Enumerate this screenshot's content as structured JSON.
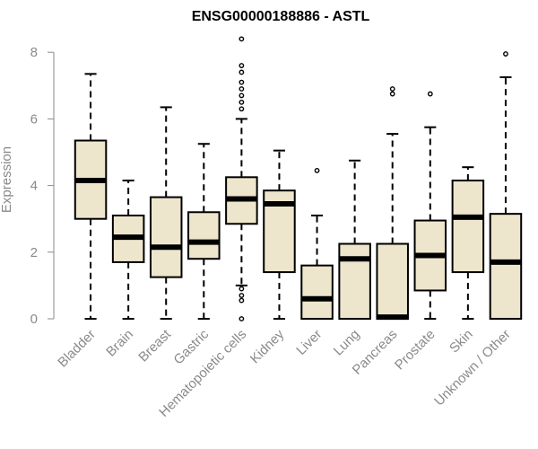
{
  "chart_data": {
    "type": "boxplot",
    "title": "ENSG00000188886 - ASTL",
    "xlabel": "",
    "ylabel": "Expression",
    "ylim": [
      0,
      8.4
    ],
    "yticks": [
      "0",
      "2",
      "4",
      "6",
      "8"
    ],
    "grid": false,
    "colors": {
      "box_fill": "#ede6cd",
      "stroke": "#000000",
      "axis": "#8a8a8a",
      "text": "#8a8a8a",
      "title": "#000000"
    },
    "categories": [
      "Bladder",
      "Brain",
      "Breast",
      "Gastric",
      "Hematopoietic cells",
      "Kidney",
      "Liver",
      "Lung",
      "Pancreas",
      "Prostate",
      "Skin",
      "Unknown / Other"
    ],
    "boxes": [
      {
        "min": 0,
        "q1": 3.0,
        "median": 4.15,
        "q3": 5.35,
        "max": 7.35,
        "outliers": []
      },
      {
        "min": 0,
        "q1": 1.7,
        "median": 2.45,
        "q3": 3.1,
        "max": 4.15,
        "outliers": []
      },
      {
        "min": 0,
        "q1": 1.25,
        "median": 2.15,
        "q3": 3.65,
        "max": 6.35,
        "outliers": []
      },
      {
        "min": 0,
        "q1": 1.8,
        "median": 2.3,
        "q3": 3.2,
        "max": 5.25,
        "outliers": []
      },
      {
        "min": 1.0,
        "q1": 2.85,
        "median": 3.6,
        "q3": 4.25,
        "max": 6.0,
        "outliers": [
          8.4,
          7.6,
          7.4,
          7.1,
          6.9,
          6.7,
          6.5,
          6.3,
          0.9,
          0.7,
          0.55,
          0.0
        ]
      },
      {
        "min": 0,
        "q1": 1.4,
        "median": 3.45,
        "q3": 3.85,
        "max": 5.05,
        "outliers": []
      },
      {
        "min": 0,
        "q1": 0,
        "median": 0.6,
        "q3": 1.6,
        "max": 3.1,
        "outliers": [
          4.45
        ]
      },
      {
        "min": 0,
        "q1": 0,
        "median": 1.8,
        "q3": 2.25,
        "max": 4.75,
        "outliers": []
      },
      {
        "min": 0,
        "q1": 0,
        "median": 0.05,
        "q3": 2.25,
        "max": 5.55,
        "outliers": [
          6.9,
          6.75
        ]
      },
      {
        "min": 0,
        "q1": 0.85,
        "median": 1.9,
        "q3": 2.95,
        "max": 5.75,
        "outliers": [
          6.75
        ]
      },
      {
        "min": 0,
        "q1": 1.4,
        "median": 3.05,
        "q3": 4.15,
        "max": 4.55,
        "outliers": []
      },
      {
        "min": 0,
        "q1": 0,
        "median": 1.7,
        "q3": 3.15,
        "max": 7.25,
        "outliers": [
          7.95
        ]
      }
    ]
  }
}
